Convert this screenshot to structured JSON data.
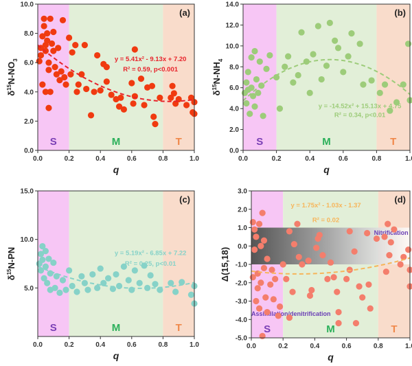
{
  "chart_data": [
    {
      "type": "scatter",
      "tag": "(a)",
      "ylabel": "δ15N-NO3",
      "ylabel_parts": [
        "δ",
        "15",
        "N-NO",
        "3"
      ],
      "xlabel": "q",
      "xlim": [
        0,
        1
      ],
      "ylim": [
        0,
        10
      ],
      "yticks": [
        "0.0",
        "2.0",
        "4.0",
        "6.0",
        "8.0",
        "10.0"
      ],
      "xticks": [
        "0.0",
        "0.2",
        "0.4",
        "0.6",
        "0.8",
        "1.0"
      ],
      "color": "#f03a10",
      "fit": [
        5.41,
        -9.13,
        7.2
      ],
      "fit_color": "#e8222a",
      "eq": "y = 5.41x² - 9.13x + 7.20",
      "r2": "R² = 0.59, p<0.001",
      "points": [
        [
          0.01,
          6.1
        ],
        [
          0.02,
          7.0
        ],
        [
          0.02,
          6.5
        ],
        [
          0.03,
          7.8
        ],
        [
          0.03,
          4.5
        ],
        [
          0.04,
          8.5
        ],
        [
          0.04,
          9.0
        ],
        [
          0.05,
          7.2
        ],
        [
          0.05,
          6.8
        ],
        [
          0.05,
          4.0
        ],
        [
          0.06,
          8.0
        ],
        [
          0.06,
          7.5
        ],
        [
          0.07,
          6.0
        ],
        [
          0.07,
          2.9
        ],
        [
          0.07,
          5.5
        ],
        [
          0.08,
          4.0
        ],
        [
          0.08,
          9.0
        ],
        [
          0.09,
          7.3
        ],
        [
          0.1,
          8.1
        ],
        [
          0.1,
          6.8
        ],
        [
          0.11,
          5.7
        ],
        [
          0.12,
          5.2
        ],
        [
          0.13,
          7.0
        ],
        [
          0.14,
          4.8
        ],
        [
          0.15,
          5.4
        ],
        [
          0.16,
          8.9
        ],
        [
          0.17,
          5.0
        ],
        [
          0.18,
          4.5
        ],
        [
          0.2,
          7.7
        ],
        [
          0.21,
          5.2
        ],
        [
          0.22,
          6.7
        ],
        [
          0.24,
          7.2
        ],
        [
          0.25,
          4.0
        ],
        [
          0.26,
          4.5
        ],
        [
          0.28,
          5.2
        ],
        [
          0.3,
          7.2
        ],
        [
          0.31,
          4.2
        ],
        [
          0.34,
          2.4
        ],
        [
          0.36,
          4.0
        ],
        [
          0.38,
          6.5
        ],
        [
          0.4,
          4.1
        ],
        [
          0.42,
          5.9
        ],
        [
          0.44,
          5.7
        ],
        [
          0.44,
          4.7
        ],
        [
          0.47,
          3.8
        ],
        [
          0.5,
          3.5
        ],
        [
          0.52,
          3.0
        ],
        [
          0.53,
          3.6
        ],
        [
          0.55,
          2.8
        ],
        [
          0.6,
          4.6
        ],
        [
          0.61,
          3.2
        ],
        [
          0.62,
          6.9
        ],
        [
          0.62,
          3.7
        ],
        [
          0.66,
          4.9
        ],
        [
          0.68,
          3.1
        ],
        [
          0.7,
          4.3
        ],
        [
          0.73,
          4.4
        ],
        [
          0.74,
          2.3
        ],
        [
          0.75,
          1.8
        ],
        [
          0.78,
          3.6
        ],
        [
          0.85,
          3.6
        ],
        [
          0.86,
          4.4
        ],
        [
          0.87,
          3.9
        ],
        [
          0.88,
          3.2
        ],
        [
          0.9,
          3.5
        ],
        [
          0.95,
          3.1
        ],
        [
          0.98,
          3.6
        ],
        [
          0.99,
          2.6
        ],
        [
          1.0,
          3.3
        ],
        [
          1.0,
          2.5
        ]
      ]
    },
    {
      "type": "scatter",
      "tag": "(b)",
      "ylabel": "δ15N-NH4",
      "ylabel_parts": [
        "δ",
        "15",
        "N-NH",
        "4"
      ],
      "xlabel": "q",
      "xlim": [
        0,
        1
      ],
      "ylim": [
        0,
        14
      ],
      "yticks": [
        "0.0",
        "2.0",
        "4.0",
        "6.0",
        "8.0",
        "10.0",
        "12.0",
        "14.0"
      ],
      "xticks": [
        "0.0",
        "0.2",
        "0.4",
        "0.6",
        "0.8",
        "1.0"
      ],
      "color": "#9dcc7a",
      "fit": [
        -14.52,
        15.13,
        4.75
      ],
      "fit_color": "#9dcc7a",
      "eq": "y = -14.52x² + 15.13x + 4.75",
      "r2": "R² = 0.34, p<0.01",
      "points": [
        [
          0.01,
          5.5
        ],
        [
          0.02,
          6.5
        ],
        [
          0.02,
          4.5
        ],
        [
          0.03,
          7.5
        ],
        [
          0.03,
          5.8
        ],
        [
          0.04,
          3.5
        ],
        [
          0.05,
          6.0
        ],
        [
          0.05,
          8.9
        ],
        [
          0.06,
          5.2
        ],
        [
          0.07,
          9.5
        ],
        [
          0.07,
          4.2
        ],
        [
          0.08,
          6.8
        ],
        [
          0.09,
          5.5
        ],
        [
          0.1,
          8.5
        ],
        [
          0.11,
          6.2
        ],
        [
          0.12,
          3.3
        ],
        [
          0.14,
          7.8
        ],
        [
          0.16,
          9.1
        ],
        [
          0.2,
          7.0
        ],
        [
          0.22,
          4.0
        ],
        [
          0.25,
          8.0
        ],
        [
          0.27,
          9.0
        ],
        [
          0.3,
          6.5
        ],
        [
          0.33,
          7.2
        ],
        [
          0.35,
          11.3
        ],
        [
          0.38,
          8.5
        ],
        [
          0.4,
          5.5
        ],
        [
          0.42,
          9.2
        ],
        [
          0.45,
          11.9
        ],
        [
          0.47,
          6.8
        ],
        [
          0.5,
          8.1
        ],
        [
          0.52,
          12.2
        ],
        [
          0.55,
          10.5
        ],
        [
          0.57,
          9.8
        ],
        [
          0.6,
          7.5
        ],
        [
          0.63,
          9.0
        ],
        [
          0.65,
          11.2
        ],
        [
          0.7,
          10.2
        ],
        [
          0.72,
          6.3
        ],
        [
          0.77,
          6.7
        ],
        [
          0.82,
          5.5
        ],
        [
          0.85,
          6.3
        ],
        [
          0.88,
          3.8
        ],
        [
          0.92,
          4.6
        ],
        [
          0.96,
          6.3
        ],
        [
          0.99,
          10.2
        ],
        [
          1.0,
          4.8
        ]
      ]
    },
    {
      "type": "scatter",
      "tag": "(c)",
      "ylabel": "δ15N-PN",
      "ylabel_parts": [
        "δ",
        "15",
        "N-PN",
        ""
      ],
      "xlabel": "q",
      "xlim": [
        0,
        1
      ],
      "ylim": [
        0,
        15
      ],
      "yticks": [
        "5.0",
        "10.0",
        "15.0"
      ],
      "ytick_values": [
        5,
        10,
        15
      ],
      "xticks": [
        "0.0",
        "0.2",
        "0.4",
        "0.6",
        "0.8",
        "1.0"
      ],
      "color": "#86d2c8",
      "fit": [
        5.19,
        -6.85,
        7.22
      ],
      "fit_color": "#86d2c8",
      "eq": "y = 5.19x² - 6.85x + 7.22",
      "r2": "R² = 0.25, p<0.01",
      "points": [
        [
          0.01,
          7.5
        ],
        [
          0.02,
          8.5
        ],
        [
          0.02,
          6.8
        ],
        [
          0.03,
          9.3
        ],
        [
          0.03,
          7.9
        ],
        [
          0.04,
          6.0
        ],
        [
          0.05,
          8.8
        ],
        [
          0.05,
          7.2
        ],
        [
          0.06,
          5.5
        ],
        [
          0.07,
          8.0
        ],
        [
          0.08,
          6.5
        ],
        [
          0.08,
          4.8
        ],
        [
          0.1,
          7.6
        ],
        [
          0.11,
          5.0
        ],
        [
          0.12,
          6.2
        ],
        [
          0.14,
          4.5
        ],
        [
          0.16,
          5.8
        ],
        [
          0.18,
          4.8
        ],
        [
          0.2,
          6.8
        ],
        [
          0.22,
          5.2
        ],
        [
          0.25,
          4.6
        ],
        [
          0.28,
          6.2
        ],
        [
          0.3,
          5.5
        ],
        [
          0.32,
          4.8
        ],
        [
          0.35,
          6.4
        ],
        [
          0.38,
          5.0
        ],
        [
          0.4,
          7.0
        ],
        [
          0.42,
          5.5
        ],
        [
          0.45,
          6.0
        ],
        [
          0.48,
          4.9
        ],
        [
          0.5,
          6.4
        ],
        [
          0.52,
          5.2
        ],
        [
          0.55,
          7.2
        ],
        [
          0.58,
          5.8
        ],
        [
          0.6,
          4.8
        ],
        [
          0.62,
          6.8
        ],
        [
          0.65,
          5.5
        ],
        [
          0.68,
          7.3
        ],
        [
          0.7,
          5.0
        ],
        [
          0.72,
          6.3
        ],
        [
          0.75,
          5.4
        ],
        [
          0.78,
          4.8
        ],
        [
          0.85,
          5.5
        ],
        [
          0.88,
          4.6
        ],
        [
          0.92,
          5.6
        ],
        [
          0.98,
          4.3
        ],
        [
          1.0,
          3.4
        ],
        [
          1.0,
          5.2
        ]
      ]
    },
    {
      "type": "scatter",
      "tag": "(d)",
      "ylabel": "Δ(15,18)",
      "ylabel_parts": [
        "Δ(15,18)",
        "",
        "",
        ""
      ],
      "xlabel": "q",
      "xlim": [
        0,
        1
      ],
      "ylim": [
        -5,
        3
      ],
      "yticks": [
        "-5.0",
        "-4.0",
        "-3.0",
        "-2.0",
        "-1.0",
        "0.0",
        "1.0",
        "2.0",
        "3.0"
      ],
      "xticks": [
        "0.0",
        "0.2",
        "0.4",
        "0.6",
        "0.8",
        "1.0"
      ],
      "color": "#f47e6c",
      "fit": [
        1.75,
        -1.03,
        -1.37
      ],
      "fit_color": "#f7b55a",
      "eq": "y = 1.75x² - 1.03x - 1.37",
      "r2": "R² = 0.02",
      "band": [
        -1,
        1
      ],
      "band_label": "Nitrification",
      "lower_label": "Assimilation/denitrification",
      "points": [
        [
          0.01,
          1.3
        ],
        [
          0.01,
          -1.7
        ],
        [
          0.02,
          0.9
        ],
        [
          0.02,
          -0.2
        ],
        [
          0.03,
          -3.0
        ],
        [
          0.03,
          0.5
        ],
        [
          0.04,
          -1.5
        ],
        [
          0.04,
          -2.3
        ],
        [
          0.05,
          1.2
        ],
        [
          0.05,
          -3.4
        ],
        [
          0.06,
          0.0
        ],
        [
          0.06,
          -2.0
        ],
        [
          0.07,
          1.8
        ],
        [
          0.07,
          -4.9
        ],
        [
          0.08,
          0.3
        ],
        [
          0.08,
          -1.2
        ],
        [
          0.09,
          -2.8
        ],
        [
          0.1,
          -0.7
        ],
        [
          0.1,
          -3.6
        ],
        [
          0.12,
          -2.1
        ],
        [
          0.13,
          -1.3
        ],
        [
          0.14,
          -2.9
        ],
        [
          0.15,
          -1.8
        ],
        [
          0.17,
          -3.8
        ],
        [
          0.18,
          -3.3
        ],
        [
          0.2,
          -1.0
        ],
        [
          0.22,
          -1.8
        ],
        [
          0.24,
          0.8
        ],
        [
          0.24,
          -3.9
        ],
        [
          0.26,
          -2.5
        ],
        [
          0.27,
          0.1
        ],
        [
          0.29,
          1.2
        ],
        [
          0.3,
          -0.6
        ],
        [
          0.32,
          -1.0
        ],
        [
          0.36,
          -0.8
        ],
        [
          0.37,
          -2.7
        ],
        [
          0.38,
          -2.4
        ],
        [
          0.41,
          -0.1
        ],
        [
          0.42,
          0.4
        ],
        [
          0.43,
          0.6
        ],
        [
          0.45,
          -0.5
        ],
        [
          0.48,
          -1.8
        ],
        [
          0.5,
          -0.9
        ],
        [
          0.52,
          -1.7
        ],
        [
          0.54,
          -2.5
        ],
        [
          0.55,
          -3.6
        ],
        [
          0.55,
          -4.2
        ],
        [
          0.6,
          -1.8
        ],
        [
          0.62,
          0.8
        ],
        [
          0.62,
          -1.3
        ],
        [
          0.65,
          -0.3
        ],
        [
          0.66,
          -4.2
        ],
        [
          0.68,
          -2.2
        ],
        [
          0.7,
          -2.8
        ],
        [
          0.73,
          0.7
        ],
        [
          0.74,
          -2.1
        ],
        [
          0.75,
          -3.4
        ],
        [
          0.79,
          0.4
        ],
        [
          0.84,
          0.5
        ],
        [
          0.85,
          -1.4
        ],
        [
          0.86,
          1.2
        ],
        [
          0.87,
          -0.5
        ],
        [
          0.88,
          0.2
        ],
        [
          0.9,
          0.9
        ],
        [
          0.94,
          -1.0
        ],
        [
          0.96,
          -0.6
        ],
        [
          0.99,
          -0.2
        ],
        [
          1.0,
          -1.3
        ],
        [
          1.0,
          -2.2
        ]
      ]
    }
  ],
  "zones": [
    {
      "label": "S",
      "range": [
        0,
        0.2
      ],
      "fill": "#f7c6f5",
      "text_color": "#7a3fb5"
    },
    {
      "label": "M",
      "range": [
        0.2,
        0.8
      ],
      "fill": "#e2efd8",
      "text_color": "#2bb05a"
    },
    {
      "label": "T",
      "range": [
        0.8,
        1
      ],
      "fill": "#f9dccb",
      "text_color": "#f0884a"
    }
  ]
}
